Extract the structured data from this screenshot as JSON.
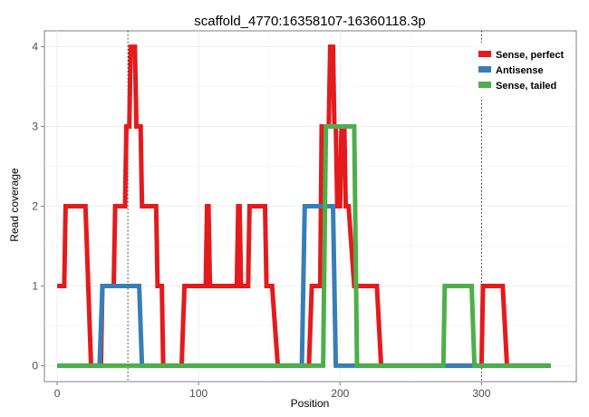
{
  "chart_data": {
    "type": "line",
    "title": "scaffold_4770:16358107-16360118.3p",
    "xlabel": "Position",
    "ylabel": "Read coverage",
    "xlim": [
      -9,
      367
    ],
    "ylim": [
      -0.2,
      4.2
    ],
    "xticks": [
      0,
      100,
      200,
      300
    ],
    "yticks": [
      0,
      1,
      2,
      3,
      4
    ],
    "grid": true,
    "vlines": [
      50,
      300
    ],
    "legend_position": "top-right",
    "series": [
      {
        "name": "Sense, perfect",
        "color": "#e41a1c",
        "x": [
          0,
          5,
          6,
          20,
          22,
          24,
          26,
          31,
          32,
          40,
          41,
          48,
          49,
          51,
          52,
          55,
          56,
          59,
          60,
          70,
          71,
          74,
          75,
          88,
          90,
          105,
          106,
          107,
          108,
          109,
          110,
          127,
          128,
          129,
          130,
          131,
          132,
          135,
          136,
          147,
          148,
          152,
          156,
          178,
          180,
          186,
          187,
          192,
          193,
          195,
          196,
          197,
          198,
          200,
          201,
          203,
          204,
          206,
          210,
          226,
          229,
          231,
          233,
          298,
          300,
          301,
          315,
          318,
          349
        ],
        "y": [
          1,
          1,
          2,
          2,
          1,
          0,
          0,
          0,
          1,
          1,
          2,
          2,
          3,
          3,
          4,
          4,
          3,
          3,
          2,
          2,
          1,
          1,
          0,
          0,
          1,
          1,
          2,
          2,
          1,
          1,
          1,
          1,
          2,
          2,
          1,
          1,
          1,
          1,
          2,
          2,
          1,
          1,
          0,
          0,
          1,
          1,
          3,
          3,
          4,
          4,
          3,
          3,
          2,
          2,
          3,
          3,
          2,
          2,
          1,
          1,
          0,
          0,
          0,
          0,
          0,
          1,
          1,
          0,
          0
        ]
      },
      {
        "name": "Antisense",
        "color": "#377eb8",
        "x": [
          0,
          30,
          32,
          58,
          60,
          173,
          175,
          195,
          197,
          349
        ],
        "y": [
          0,
          0,
          1,
          1,
          0,
          0,
          2,
          2,
          0,
          0
        ]
      },
      {
        "name": "Sense, tailed",
        "color": "#4daf4a",
        "x": [
          0,
          188,
          190,
          210,
          212,
          273,
          274,
          293,
          295,
          349
        ],
        "y": [
          0,
          0,
          3,
          3,
          0,
          0,
          1,
          1,
          0,
          0
        ]
      }
    ]
  }
}
